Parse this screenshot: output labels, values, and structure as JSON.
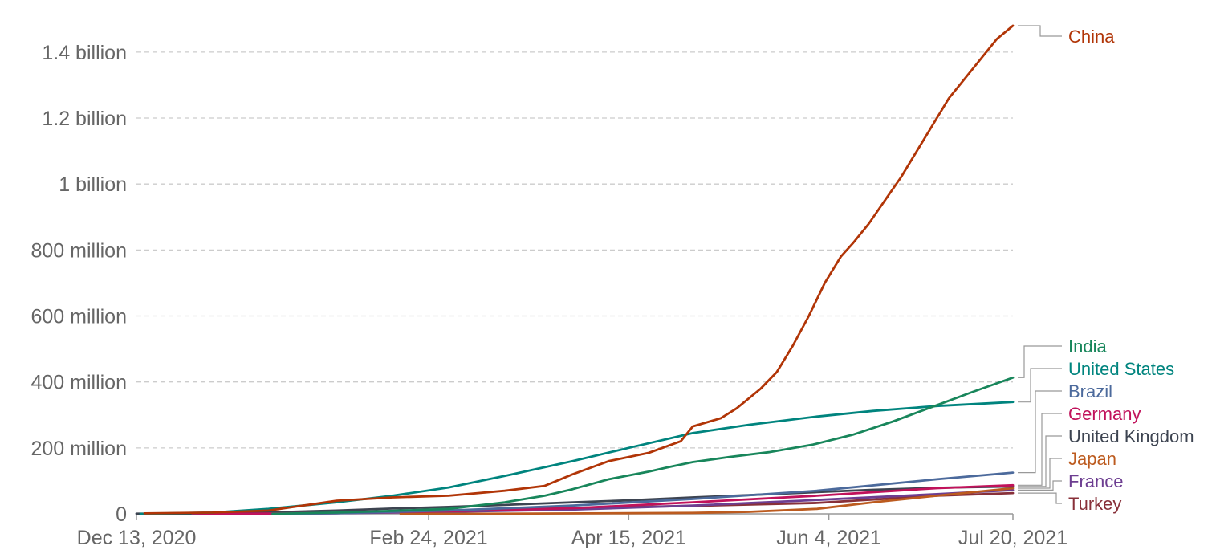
{
  "chart_data": {
    "type": "line",
    "title": "",
    "xlabel": "",
    "ylabel": "",
    "x_ticks": [
      {
        "date": "2020-12-13",
        "label": "Dec 13, 2020"
      },
      {
        "date": "2021-02-24",
        "label": "Feb 24, 2021"
      },
      {
        "date": "2021-04-15",
        "label": "Apr 15, 2021"
      },
      {
        "date": "2021-06-04",
        "label": "Jun 4, 2021"
      },
      {
        "date": "2021-07-20",
        "label": "Jul 20, 2021"
      }
    ],
    "y_ticks": [
      {
        "value": 0,
        "label": "0"
      },
      {
        "value": 200000000,
        "label": "200 million"
      },
      {
        "value": 400000000,
        "label": "400 million"
      },
      {
        "value": 600000000,
        "label": "600 million"
      },
      {
        "value": 800000000,
        "label": "800 million"
      },
      {
        "value": 1000000000,
        "label": "1 billion"
      },
      {
        "value": 1200000000,
        "label": "1.2 billion"
      },
      {
        "value": 1400000000,
        "label": "1.4 billion"
      }
    ],
    "xlim": [
      "2020-12-13",
      "2021-07-20"
    ],
    "ylim": [
      0,
      1480000000
    ],
    "grid": "horizontal-dashed",
    "legend": "right, line-end labels",
    "series": [
      {
        "name": "China",
        "color": "#b13507",
        "points": [
          [
            "2020-12-15",
            1500000
          ],
          [
            "2021-01-01",
            4000000
          ],
          [
            "2021-01-15",
            10000000
          ],
          [
            "2021-02-01",
            40000000
          ],
          [
            "2021-02-15",
            50000000
          ],
          [
            "2021-03-01",
            55000000
          ],
          [
            "2021-03-15",
            70000000
          ],
          [
            "2021-03-25",
            85000000
          ],
          [
            "2021-04-01",
            120000000
          ],
          [
            "2021-04-10",
            160000000
          ],
          [
            "2021-04-20",
            185000000
          ],
          [
            "2021-04-28",
            220000000
          ],
          [
            "2021-05-01",
            265000000
          ],
          [
            "2021-05-08",
            290000000
          ],
          [
            "2021-05-12",
            320000000
          ],
          [
            "2021-05-18",
            380000000
          ],
          [
            "2021-05-22",
            430000000
          ],
          [
            "2021-05-26",
            510000000
          ],
          [
            "2021-05-30",
            600000000
          ],
          [
            "2021-06-03",
            700000000
          ],
          [
            "2021-06-07",
            780000000
          ],
          [
            "2021-06-10",
            820000000
          ],
          [
            "2021-06-14",
            880000000
          ],
          [
            "2021-06-18",
            950000000
          ],
          [
            "2021-06-22",
            1020000000
          ],
          [
            "2021-06-26",
            1100000000
          ],
          [
            "2021-06-30",
            1180000000
          ],
          [
            "2021-07-04",
            1260000000
          ],
          [
            "2021-07-08",
            1320000000
          ],
          [
            "2021-07-12",
            1380000000
          ],
          [
            "2021-07-16",
            1440000000
          ],
          [
            "2021-07-20",
            1480000000
          ]
        ]
      },
      {
        "name": "India",
        "color": "#18865b",
        "points": [
          [
            "2021-01-16",
            200000
          ],
          [
            "2021-02-01",
            4000000
          ],
          [
            "2021-02-15",
            9000000
          ],
          [
            "2021-03-01",
            15000000
          ],
          [
            "2021-03-15",
            35000000
          ],
          [
            "2021-03-25",
            55000000
          ],
          [
            "2021-04-01",
            75000000
          ],
          [
            "2021-04-10",
            105000000
          ],
          [
            "2021-04-20",
            128000000
          ],
          [
            "2021-04-25",
            142000000
          ],
          [
            "2021-05-01",
            157000000
          ],
          [
            "2021-05-10",
            172000000
          ],
          [
            "2021-05-20",
            187000000
          ],
          [
            "2021-05-31",
            210000000
          ],
          [
            "2021-06-10",
            240000000
          ],
          [
            "2021-06-20",
            280000000
          ],
          [
            "2021-06-30",
            325000000
          ],
          [
            "2021-07-10",
            370000000
          ],
          [
            "2021-07-20",
            413000000
          ]
        ]
      },
      {
        "name": "United States",
        "color": "#00847e",
        "points": [
          [
            "2020-12-14",
            0
          ],
          [
            "2021-01-01",
            4000000
          ],
          [
            "2021-01-15",
            15000000
          ],
          [
            "2021-02-01",
            35000000
          ],
          [
            "2021-02-15",
            55000000
          ],
          [
            "2021-03-01",
            80000000
          ],
          [
            "2021-03-15",
            115000000
          ],
          [
            "2021-04-01",
            160000000
          ],
          [
            "2021-04-15",
            200000000
          ],
          [
            "2021-05-01",
            245000000
          ],
          [
            "2021-05-15",
            270000000
          ],
          [
            "2021-06-01",
            295000000
          ],
          [
            "2021-06-15",
            312000000
          ],
          [
            "2021-07-01",
            327000000
          ],
          [
            "2021-07-20",
            339000000
          ]
        ]
      },
      {
        "name": "Brazil",
        "color": "#4c6a9c",
        "points": [
          [
            "2021-01-17",
            0
          ],
          [
            "2021-02-01",
            2000000
          ],
          [
            "2021-03-01",
            10000000
          ],
          [
            "2021-04-01",
            25000000
          ],
          [
            "2021-05-01",
            45000000
          ],
          [
            "2021-06-01",
            70000000
          ],
          [
            "2021-07-01",
            105000000
          ],
          [
            "2021-07-20",
            125000000
          ]
        ]
      },
      {
        "name": "Germany",
        "color": "#c1125b",
        "points": [
          [
            "2020-12-27",
            0
          ],
          [
            "2021-01-15",
            1000000
          ],
          [
            "2021-02-01",
            3000000
          ],
          [
            "2021-03-01",
            8000000
          ],
          [
            "2021-04-01",
            17000000
          ],
          [
            "2021-05-01",
            35000000
          ],
          [
            "2021-06-01",
            55000000
          ],
          [
            "2021-07-01",
            78000000
          ],
          [
            "2021-07-20",
            87000000
          ]
        ]
      },
      {
        "name": "United Kingdom",
        "color": "#3d4451",
        "points": [
          [
            "2020-12-13",
            500000
          ],
          [
            "2021-01-01",
            1000000
          ],
          [
            "2021-01-20",
            6000000
          ],
          [
            "2021-02-01",
            10000000
          ],
          [
            "2021-02-15",
            16000000
          ],
          [
            "2021-03-01",
            21000000
          ],
          [
            "2021-03-15",
            27000000
          ],
          [
            "2021-04-01",
            35000000
          ],
          [
            "2021-04-15",
            41000000
          ],
          [
            "2021-05-01",
            50000000
          ],
          [
            "2021-05-15",
            57000000
          ],
          [
            "2021-06-01",
            66000000
          ],
          [
            "2021-06-15",
            73000000
          ],
          [
            "2021-07-01",
            79000000
          ],
          [
            "2021-07-20",
            83000000
          ]
        ]
      },
      {
        "name": "Japan",
        "color": "#bc5b1f",
        "points": [
          [
            "2021-02-17",
            0
          ],
          [
            "2021-03-15",
            500000
          ],
          [
            "2021-04-15",
            2000000
          ],
          [
            "2021-05-01",
            3000000
          ],
          [
            "2021-05-15",
            6000000
          ],
          [
            "2021-06-01",
            15000000
          ],
          [
            "2021-06-15",
            35000000
          ],
          [
            "2021-07-01",
            55000000
          ],
          [
            "2021-07-20",
            78000000
          ]
        ]
      },
      {
        "name": "France",
        "color": "#6d3e91",
        "points": [
          [
            "2020-12-27",
            0
          ],
          [
            "2021-01-15",
            500000
          ],
          [
            "2021-02-01",
            2000000
          ],
          [
            "2021-03-01",
            6000000
          ],
          [
            "2021-04-01",
            13000000
          ],
          [
            "2021-05-01",
            25000000
          ],
          [
            "2021-06-01",
            42000000
          ],
          [
            "2021-07-01",
            60000000
          ],
          [
            "2021-07-20",
            72000000
          ]
        ]
      },
      {
        "name": "Turkey",
        "color": "#883039",
        "points": [
          [
            "2021-01-14",
            0
          ],
          [
            "2021-02-01",
            2000000
          ],
          [
            "2021-03-01",
            10000000
          ],
          [
            "2021-04-01",
            18000000
          ],
          [
            "2021-05-01",
            24000000
          ],
          [
            "2021-06-01",
            33000000
          ],
          [
            "2021-07-01",
            55000000
          ],
          [
            "2021-07-20",
            63000000
          ]
        ]
      }
    ]
  }
}
